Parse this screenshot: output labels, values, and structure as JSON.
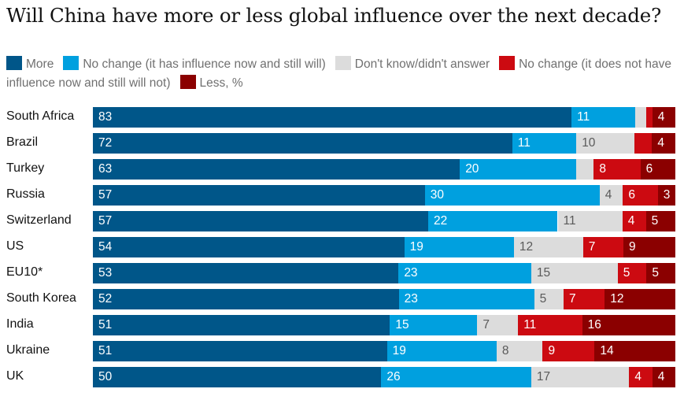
{
  "title": "Will China have more or less global influence over the next decade?",
  "legend": [
    {
      "label": "More",
      "color": "#005689"
    },
    {
      "label": "No change (it has influence now and still will)",
      "color": "#00a0df"
    },
    {
      "label": "Don't know/didn't answer",
      "color": "#dcdcdc"
    },
    {
      "label": "No change (it does not have influence now and still will not)",
      "color": "#cc0a11"
    },
    {
      "label": "Less, %",
      "color": "#8b0000"
    }
  ],
  "chart_data": {
    "type": "bar",
    "orientation": "horizontal",
    "stacked": true,
    "title": "Will China have more or less global influence over the next decade?",
    "unit": "%",
    "categories": [
      "South Africa",
      "Brazil",
      "Turkey",
      "Russia",
      "Switzerland",
      "US",
      "EU10*",
      "South Korea",
      "India",
      "Ukraine",
      "UK"
    ],
    "series": [
      {
        "name": "More",
        "values": [
          83,
          72,
          63,
          57,
          57,
          54,
          53,
          52,
          51,
          51,
          50
        ]
      },
      {
        "name": "No change (it has influence now and still will)",
        "values": [
          11,
          11,
          20,
          30,
          22,
          19,
          23,
          23,
          15,
          19,
          26
        ]
      },
      {
        "name": "Don't know/didn't answer",
        "values": [
          2,
          10,
          3,
          4,
          11,
          12,
          15,
          5,
          7,
          8,
          17
        ]
      },
      {
        "name": "No change (it does not have influence now and still will not)",
        "values": [
          1,
          3,
          8,
          6,
          4,
          7,
          5,
          7,
          11,
          9,
          4
        ]
      },
      {
        "name": "Less, %",
        "values": [
          4,
          4,
          6,
          3,
          5,
          9,
          5,
          12,
          16,
          14,
          4
        ]
      }
    ],
    "value_labels": [
      [
        "83",
        "11",
        "",
        "",
        "4"
      ],
      [
        "72",
        "11",
        "10",
        "",
        "4"
      ],
      [
        "63",
        "20",
        "",
        "8",
        "6"
      ],
      [
        "57",
        "30",
        "4",
        "6",
        "3"
      ],
      [
        "57",
        "22",
        "11",
        "4",
        "5"
      ],
      [
        "54",
        "19",
        "12",
        "7",
        "9"
      ],
      [
        "53",
        "23",
        "15",
        "5",
        "5"
      ],
      [
        "52",
        "23",
        "5",
        "7",
        "12"
      ],
      [
        "51",
        "15",
        "7",
        "11",
        "16"
      ],
      [
        "51",
        "19",
        "8",
        "9",
        "14"
      ],
      [
        "50",
        "26",
        "17",
        "4",
        "4"
      ]
    ],
    "colors": [
      "#005689",
      "#00a0df",
      "#dcdcdc",
      "#cc0a11",
      "#8b0000"
    ],
    "legend_position": "top"
  }
}
